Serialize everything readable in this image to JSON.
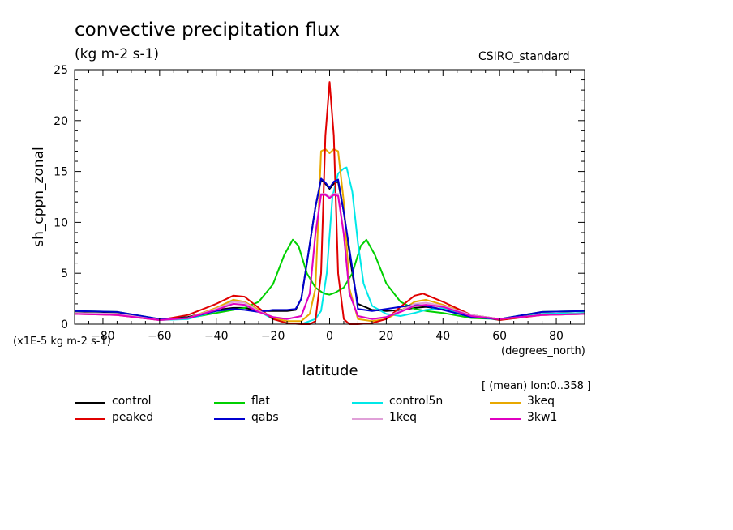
{
  "header": {
    "title": "convective precipitation flux",
    "units": "(kg m-2 s-1)",
    "dataset": "CSIRO_standard",
    "scale_note": "(x1E-5 kg m-2 s-1)",
    "x_units": "(degrees_north)",
    "region": "[ (mean) lon:0..358 ]"
  },
  "chart_data": {
    "type": "line",
    "title": "convective precipitation flux",
    "xlabel": "latitude",
    "ylabel": "sh_cppn_zonal",
    "xlim": [
      -90,
      90
    ],
    "ylim": [
      0,
      25
    ],
    "xticks": [
      -80,
      -60,
      -40,
      -20,
      0,
      20,
      40,
      60,
      80
    ],
    "yticks": [
      0,
      5,
      10,
      15,
      20,
      25
    ],
    "legend_position": "bottom",
    "series": [
      {
        "name": "control",
        "color": "#000000",
        "x": [
          -90,
          -75,
          -60,
          -50,
          -40,
          -34,
          -30,
          -25,
          -20,
          -15,
          -12,
          -10,
          -8,
          -5,
          -3,
          -1.5,
          0,
          1.5,
          3,
          5,
          8,
          10,
          15,
          20,
          25,
          30,
          34,
          40,
          50,
          60,
          75,
          90
        ],
        "y": [
          1.2,
          1.1,
          0.5,
          0.7,
          1.4,
          1.6,
          1.6,
          1.3,
          1.3,
          1.3,
          1.4,
          2.5,
          6.0,
          11.5,
          14.2,
          13.8,
          13.3,
          13.8,
          14.0,
          11.0,
          5.0,
          2.0,
          1.4,
          1.3,
          1.4,
          1.6,
          1.7,
          1.5,
          0.9,
          0.5,
          1.0,
          1.1
        ]
      },
      {
        "name": "flat",
        "color": "#00d000",
        "x": [
          -90,
          -75,
          -60,
          -50,
          -40,
          -34,
          -30,
          -25,
          -20,
          -16,
          -13,
          -11,
          -8,
          -5,
          -2,
          0,
          2,
          5,
          8,
          11,
          13,
          16,
          20,
          25,
          30,
          34,
          40,
          50,
          60,
          75,
          90
        ],
        "y": [
          1.3,
          1.2,
          0.5,
          0.6,
          1.1,
          1.4,
          1.6,
          2.2,
          3.9,
          6.8,
          8.3,
          7.7,
          5.0,
          3.6,
          3.0,
          2.9,
          3.1,
          3.6,
          5.0,
          7.7,
          8.3,
          6.8,
          4.0,
          2.2,
          1.5,
          1.3,
          1.1,
          0.6,
          0.5,
          1.2,
          1.3
        ]
      },
      {
        "name": "control5n",
        "color": "#00e8e8",
        "x": [
          -90,
          -75,
          -60,
          -50,
          -40,
          -34,
          -30,
          -25,
          -20,
          -15,
          -10,
          -7,
          -5,
          -3,
          -1,
          1,
          3,
          5,
          6,
          8,
          10,
          12,
          15,
          20,
          25,
          30,
          34,
          40,
          50,
          60,
          75,
          90
        ],
        "y": [
          1.1,
          1.0,
          0.4,
          0.5,
          1.3,
          2.3,
          2.2,
          1.3,
          0.5,
          0.1,
          0.0,
          0.3,
          0.5,
          1.3,
          5.0,
          12.5,
          14.8,
          15.3,
          15.4,
          13.0,
          8.0,
          4.0,
          1.8,
          1.0,
          0.8,
          1.1,
          1.4,
          1.6,
          0.8,
          0.4,
          1.0,
          1.1
        ]
      },
      {
        "name": "3keq",
        "color": "#e8a800",
        "x": [
          -90,
          -75,
          -60,
          -50,
          -40,
          -34,
          -30,
          -25,
          -20,
          -15,
          -10,
          -7,
          -5,
          -3,
          -1.5,
          0,
          1.5,
          3,
          5,
          7,
          10,
          15,
          20,
          25,
          30,
          34,
          40,
          50,
          60,
          75,
          90
        ],
        "y": [
          1.1,
          1.0,
          0.4,
          0.6,
          1.6,
          2.4,
          2.2,
          1.4,
          0.6,
          0.3,
          0.3,
          1.0,
          3.5,
          17.0,
          17.2,
          16.8,
          17.2,
          17.0,
          12.0,
          3.5,
          0.5,
          0.3,
          0.5,
          1.3,
          2.2,
          2.4,
          1.9,
          0.9,
          0.5,
          0.9,
          1.0
        ]
      },
      {
        "name": "peaked",
        "color": "#e00000",
        "x": [
          -90,
          -75,
          -60,
          -50,
          -40,
          -34,
          -30,
          -25,
          -20,
          -15,
          -10,
          -7,
          -5,
          -3,
          -1.5,
          0,
          1.5,
          3,
          5,
          7,
          10,
          15,
          20,
          25,
          30,
          33,
          40,
          50,
          60,
          75,
          90
        ],
        "y": [
          1.0,
          0.9,
          0.4,
          0.9,
          2.0,
          2.8,
          2.7,
          1.6,
          0.5,
          0.1,
          0.0,
          0.0,
          0.3,
          5.0,
          18.5,
          23.8,
          18.5,
          5.0,
          0.5,
          0.0,
          0.0,
          0.1,
          0.5,
          1.7,
          2.8,
          3.0,
          2.2,
          0.9,
          0.4,
          0.9,
          1.0
        ]
      },
      {
        "name": "qabs",
        "color": "#0000d0",
        "x": [
          -90,
          -75,
          -60,
          -50,
          -40,
          -34,
          -30,
          -25,
          -20,
          -15,
          -12,
          -10,
          -8,
          -5,
          -3,
          -1.5,
          0,
          1.5,
          3,
          5,
          8,
          10,
          15,
          20,
          25,
          30,
          34,
          40,
          50,
          60,
          75,
          90
        ],
        "y": [
          1.3,
          1.2,
          0.5,
          0.6,
          1.3,
          1.5,
          1.4,
          1.2,
          1.4,
          1.4,
          1.5,
          2.5,
          6.0,
          11.5,
          14.3,
          13.9,
          13.4,
          14.0,
          14.2,
          11.0,
          5.5,
          1.5,
          1.3,
          1.5,
          1.7,
          1.9,
          1.8,
          1.4,
          0.7,
          0.5,
          1.2,
          1.3
        ]
      },
      {
        "name": "1keq",
        "color": "#e0a0d8",
        "x": [
          -90,
          -75,
          -60,
          -50,
          -40,
          -34,
          -30,
          -25,
          -20,
          -15,
          -10,
          -7,
          -5,
          -3,
          -1.5,
          0,
          1.5,
          3,
          5,
          7,
          10,
          15,
          20,
          25,
          30,
          34,
          40,
          50,
          60,
          75,
          90
        ],
        "y": [
          1.1,
          1.0,
          0.4,
          0.6,
          1.5,
          2.2,
          2.1,
          1.3,
          0.7,
          0.5,
          0.8,
          3.0,
          9.0,
          12.8,
          12.8,
          12.5,
          12.8,
          12.8,
          9.0,
          3.0,
          0.8,
          0.5,
          0.7,
          1.3,
          2.0,
          2.1,
          1.8,
          0.9,
          0.5,
          0.9,
          1.0
        ]
      },
      {
        "name": "3kw1",
        "color": "#e000c0",
        "x": [
          -90,
          -75,
          -60,
          -50,
          -40,
          -34,
          -30,
          -25,
          -20,
          -15,
          -10,
          -7,
          -5,
          -3,
          -1.5,
          0,
          1.5,
          3,
          5,
          7,
          10,
          15,
          20,
          25,
          30,
          34,
          40,
          50,
          60,
          75,
          90
        ],
        "y": [
          1.0,
          0.9,
          0.4,
          0.6,
          1.4,
          2.0,
          1.9,
          1.2,
          0.7,
          0.5,
          0.8,
          3.0,
          8.8,
          12.7,
          12.7,
          12.4,
          12.7,
          12.6,
          8.8,
          3.0,
          0.8,
          0.5,
          0.7,
          1.2,
          1.8,
          1.9,
          1.7,
          0.8,
          0.5,
          0.9,
          1.0
        ]
      }
    ]
  },
  "legend": [
    {
      "label": "control",
      "color": "#000000"
    },
    {
      "label": "flat",
      "color": "#00d000"
    },
    {
      "label": "control5n",
      "color": "#00e8e8"
    },
    {
      "label": "3keq",
      "color": "#e8a800"
    },
    {
      "label": "peaked",
      "color": "#e00000"
    },
    {
      "label": "qabs",
      "color": "#0000d0"
    },
    {
      "label": "1keq",
      "color": "#e0a0d8"
    },
    {
      "label": "3kw1",
      "color": "#e000c0"
    }
  ]
}
